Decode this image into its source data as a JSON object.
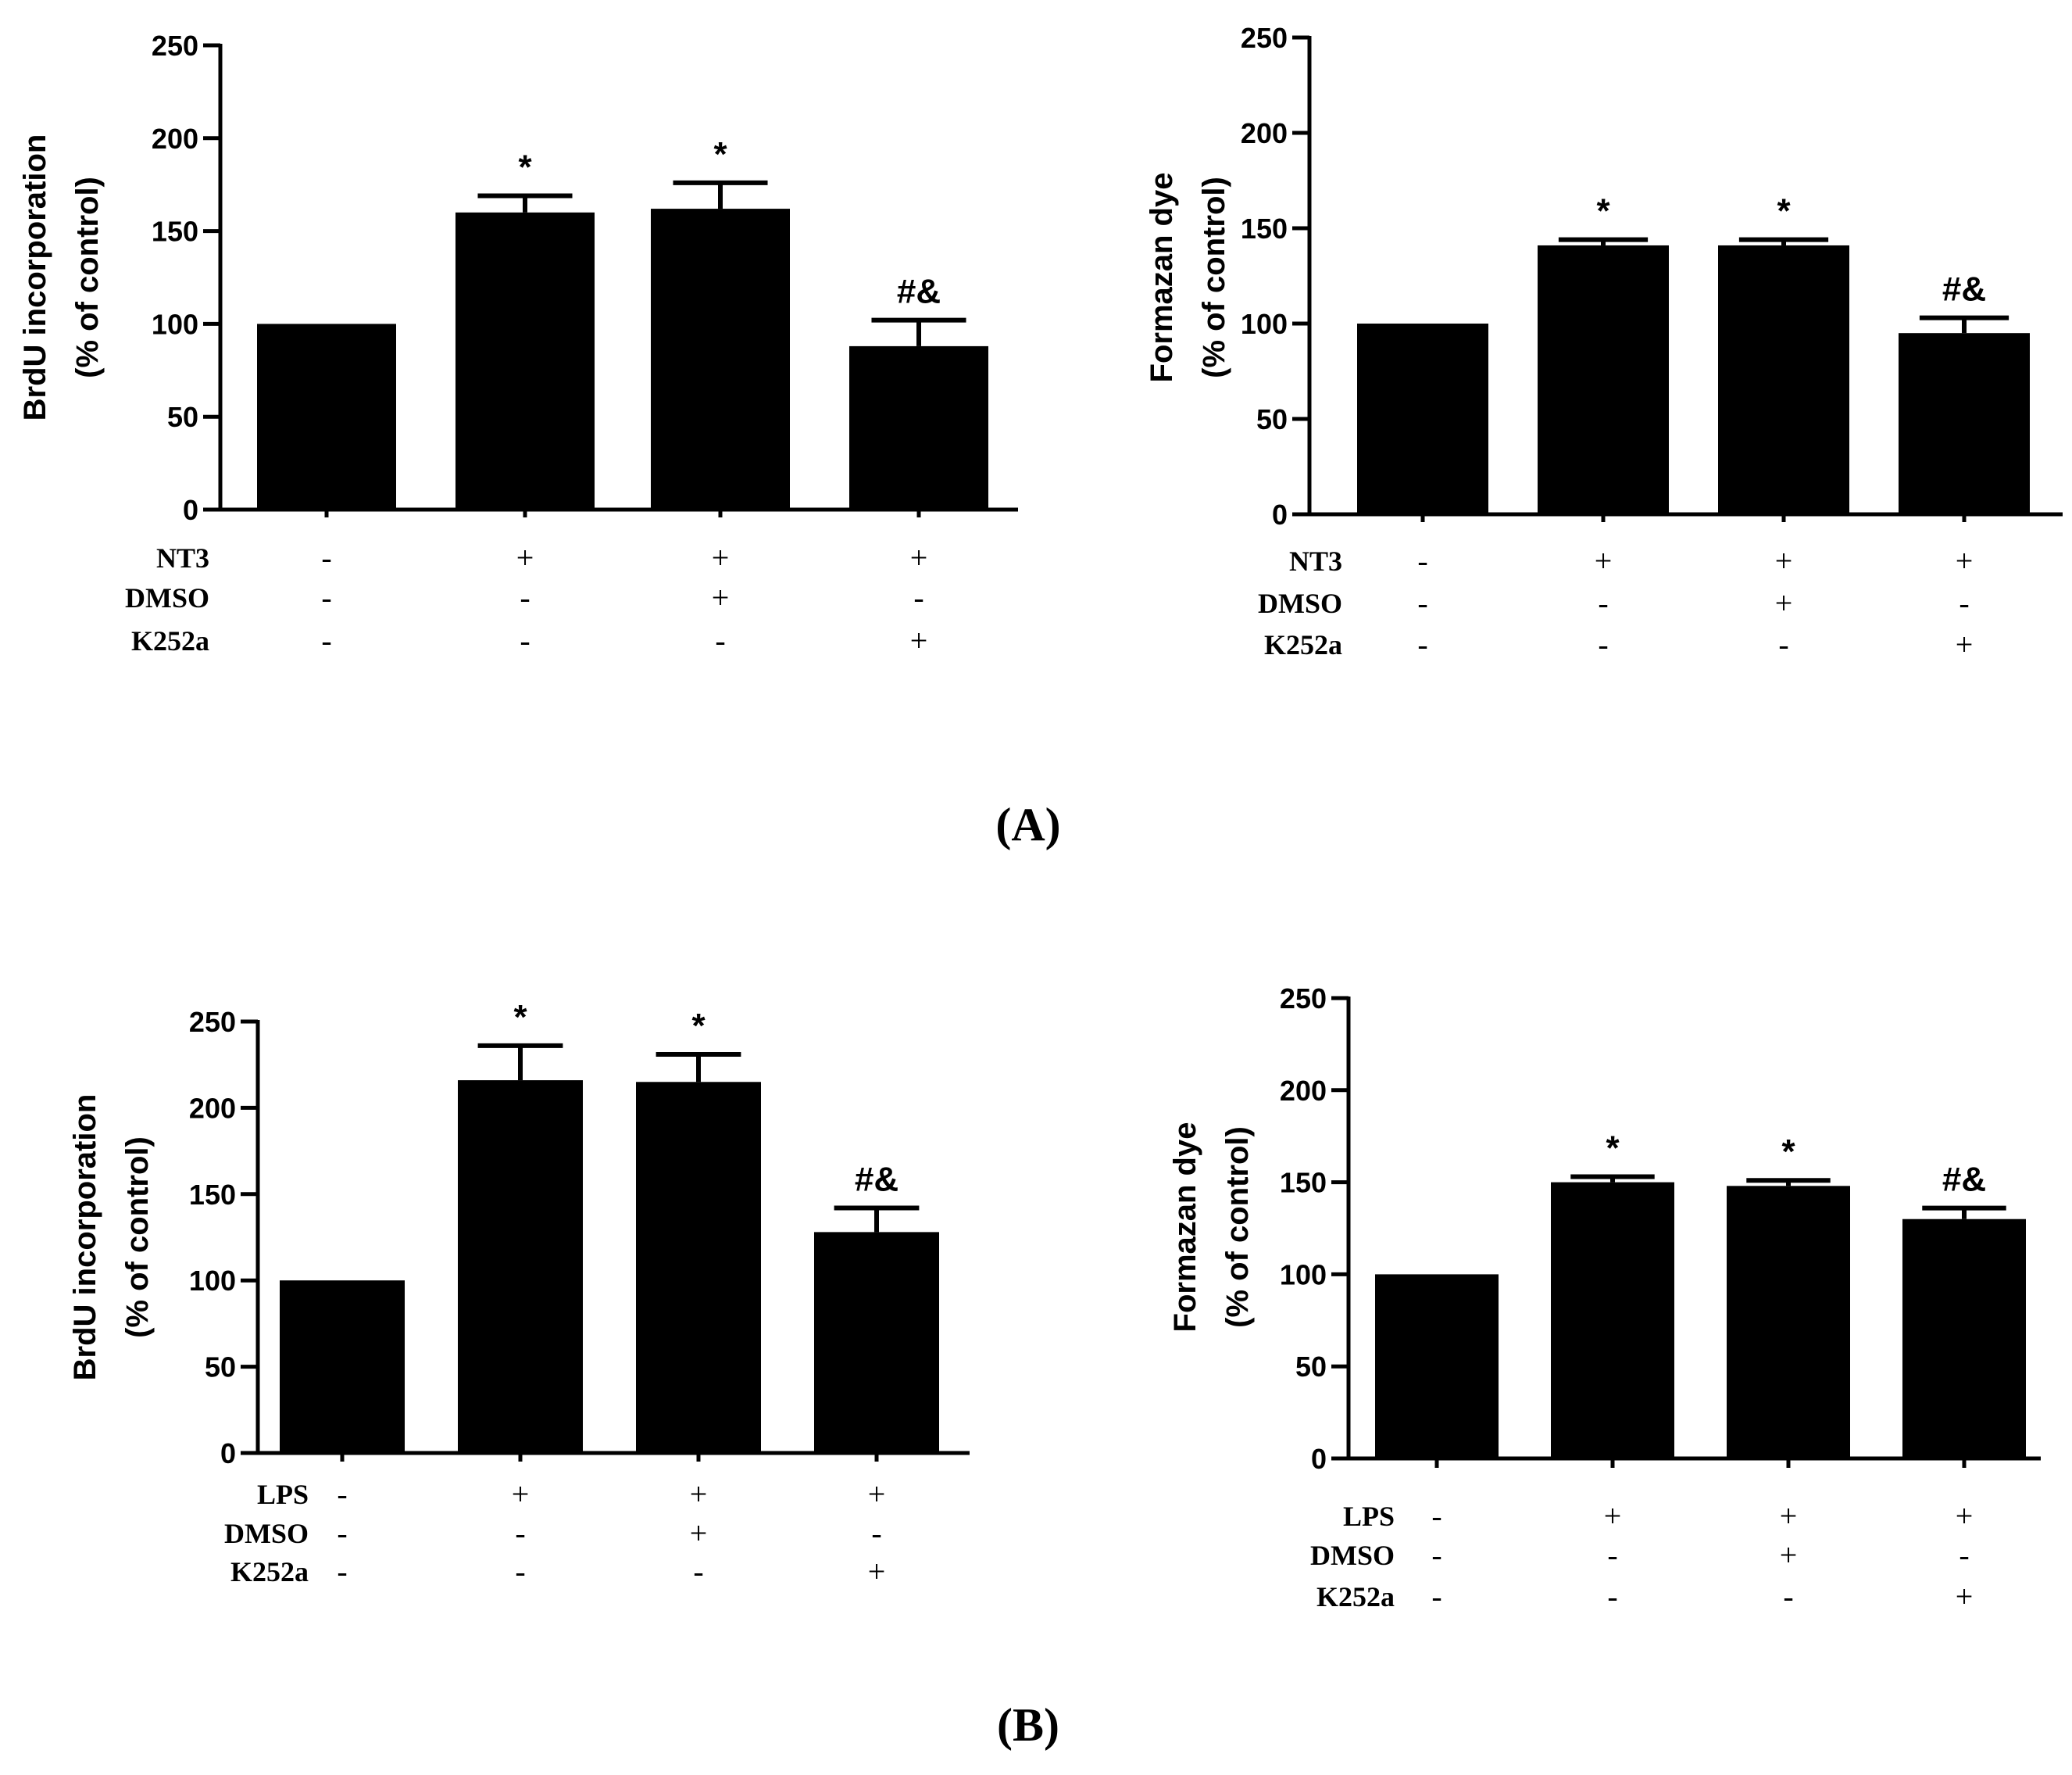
{
  "panel_labels": [
    "(A)",
    "(B)"
  ],
  "chart_data": [
    {
      "type": "bar",
      "panel": "A",
      "title": "",
      "xlabel": "",
      "ylabel": [
        "BrdU incorporation",
        "(% of control)"
      ],
      "ylim": [
        0,
        250
      ],
      "yticks": [
        "0",
        "50",
        "100",
        "150",
        "200",
        "250"
      ],
      "values": [
        100,
        160,
        162,
        88
      ],
      "errors": [
        0,
        9,
        14,
        14
      ],
      "annotations": [
        "",
        "*",
        "*",
        "#&"
      ],
      "treatments": [
        {
          "name": "NT3",
          "signs": [
            "-",
            "+",
            "+",
            "+"
          ]
        },
        {
          "name": "DMSO",
          "signs": [
            "-",
            "-",
            "+",
            "-"
          ]
        },
        {
          "name": "K252a",
          "signs": [
            "-",
            "-",
            "-",
            "+"
          ]
        }
      ]
    },
    {
      "type": "bar",
      "panel": "A",
      "title": "",
      "xlabel": "",
      "ylabel": [
        "Formazan dye",
        "(% of control)"
      ],
      "ylim": [
        0,
        250
      ],
      "yticks": [
        "0",
        "50",
        "100",
        "150",
        "200",
        "250"
      ],
      "values": [
        100,
        141,
        141,
        95
      ],
      "errors": [
        0,
        3,
        3,
        8
      ],
      "annotations": [
        "",
        "*",
        "*",
        "#&"
      ],
      "treatments": [
        {
          "name": "NT3",
          "signs": [
            "-",
            "+",
            "+",
            "+"
          ]
        },
        {
          "name": "DMSO",
          "signs": [
            "-",
            "-",
            "+",
            "-"
          ]
        },
        {
          "name": "K252a",
          "signs": [
            "-",
            "-",
            "-",
            "+"
          ]
        }
      ]
    },
    {
      "type": "bar",
      "panel": "B",
      "title": "",
      "xlabel": "",
      "ylabel": [
        "BrdU incorporation",
        "(% of control)"
      ],
      "ylim": [
        0,
        250
      ],
      "yticks": [
        "0",
        "50",
        "100",
        "150",
        "200",
        "250"
      ],
      "values": [
        100,
        216,
        215,
        128
      ],
      "errors": [
        0,
        20,
        16,
        14
      ],
      "annotations": [
        "",
        "*",
        "*",
        "#&"
      ],
      "treatments": [
        {
          "name": "LPS",
          "signs": [
            "-",
            "+",
            "+",
            "+"
          ]
        },
        {
          "name": "DMSO",
          "signs": [
            "-",
            "-",
            "+",
            "-"
          ]
        },
        {
          "name": "K252a",
          "signs": [
            "-",
            "-",
            "-",
            "+"
          ]
        }
      ]
    },
    {
      "type": "bar",
      "panel": "B",
      "title": "",
      "xlabel": "",
      "ylabel": [
        "Formazan dye",
        "(% of control)"
      ],
      "ylim": [
        0,
        250
      ],
      "yticks": [
        "0",
        "50",
        "100",
        "150",
        "200",
        "250"
      ],
      "values": [
        100,
        150,
        148,
        130
      ],
      "errors": [
        0,
        3,
        3,
        6
      ],
      "annotations": [
        "",
        "*",
        "*",
        "#&"
      ],
      "treatments": [
        {
          "name": "LPS",
          "signs": [
            "-",
            "+",
            "+",
            "+"
          ]
        },
        {
          "name": "DMSO",
          "signs": [
            "-",
            "-",
            "+",
            "-"
          ]
        },
        {
          "name": "K252a",
          "signs": [
            "-",
            "-",
            "-",
            "+"
          ]
        }
      ]
    }
  ]
}
